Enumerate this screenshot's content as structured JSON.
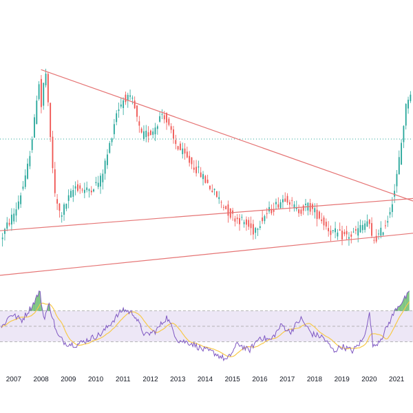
{
  "chart_data": {
    "type": "candlestick",
    "title": "",
    "xlabel": "",
    "ylabel": "",
    "x_ticks": [
      "2007",
      "2008",
      "2009",
      "2010",
      "2011",
      "2012",
      "2013",
      "2014",
      "2015",
      "2016",
      "2017",
      "2018",
      "2019",
      "2020",
      "2021"
    ],
    "xlim": [
      2006.5,
      2021.6
    ],
    "price": {
      "ylim": [
        0,
        100
      ],
      "horizontal_dotted_level": 55,
      "colors": {
        "up": "#26a69a",
        "down": "#ef5350",
        "trendline": "#e57373",
        "level": "#26a69a"
      },
      "keypoints": [
        [
          2006.55,
          14
        ],
        [
          2006.8,
          20
        ],
        [
          2007.1,
          26
        ],
        [
          2007.5,
          40
        ],
        [
          2007.8,
          62
        ],
        [
          2007.95,
          80
        ],
        [
          2008.05,
          68
        ],
        [
          2008.2,
          84
        ],
        [
          2008.35,
          60
        ],
        [
          2008.55,
          32
        ],
        [
          2008.75,
          24
        ],
        [
          2009.0,
          30
        ],
        [
          2009.3,
          36
        ],
        [
          2009.7,
          34
        ],
        [
          2010.2,
          38
        ],
        [
          2010.5,
          50
        ],
        [
          2010.8,
          66
        ],
        [
          2011.1,
          72
        ],
        [
          2011.4,
          70
        ],
        [
          2011.7,
          56
        ],
        [
          2012.1,
          58
        ],
        [
          2012.5,
          66
        ],
        [
          2012.9,
          54
        ],
        [
          2013.3,
          48
        ],
        [
          2013.8,
          42
        ],
        [
          2014.2,
          36
        ],
        [
          2014.6,
          30
        ],
        [
          2015.0,
          24
        ],
        [
          2015.4,
          22
        ],
        [
          2015.8,
          18
        ],
        [
          2016.2,
          24
        ],
        [
          2016.6,
          28
        ],
        [
          2017.0,
          32
        ],
        [
          2017.4,
          26
        ],
        [
          2017.8,
          28
        ],
        [
          2018.2,
          24
        ],
        [
          2018.6,
          18
        ],
        [
          2019.0,
          16
        ],
        [
          2019.4,
          16
        ],
        [
          2019.8,
          20
        ],
        [
          2020.0,
          22
        ],
        [
          2020.15,
          14
        ],
        [
          2020.4,
          16
        ],
        [
          2020.7,
          22
        ],
        [
          2021.0,
          36
        ],
        [
          2021.2,
          52
        ],
        [
          2021.35,
          66
        ],
        [
          2021.5,
          74
        ]
      ],
      "trendlines": [
        {
          "name": "descending-resistance",
          "from": [
            2008.0,
            83
          ],
          "to": [
            2021.6,
            30
          ]
        },
        {
          "name": "upper-support",
          "from": [
            2006.5,
            18
          ],
          "to": [
            2021.6,
            31
          ]
        },
        {
          "name": "lower-support",
          "from": [
            2006.5,
            0
          ],
          "to": [
            2021.6,
            17
          ]
        }
      ]
    },
    "rsi": {
      "ylim": [
        0,
        100
      ],
      "upper_band": 70,
      "lower_band": 30,
      "middle_line": 50,
      "colors": {
        "rsi": "#7e57c2",
        "ma": "#f7c948",
        "band_fill": "#ede7f6",
        "overbought_fill": "#66bb6a",
        "band_line": "#9e9e9e"
      },
      "keypoints": [
        [
          2006.55,
          48
        ],
        [
          2006.9,
          66
        ],
        [
          2007.3,
          58
        ],
        [
          2007.7,
          78
        ],
        [
          2007.95,
          96
        ],
        [
          2008.1,
          60
        ],
        [
          2008.3,
          78
        ],
        [
          2008.6,
          38
        ],
        [
          2008.9,
          28
        ],
        [
          2009.3,
          26
        ],
        [
          2009.8,
          34
        ],
        [
          2010.2,
          40
        ],
        [
          2010.6,
          56
        ],
        [
          2011.0,
          72
        ],
        [
          2011.4,
          66
        ],
        [
          2011.8,
          38
        ],
        [
          2012.2,
          44
        ],
        [
          2012.6,
          62
        ],
        [
          2013.0,
          32
        ],
        [
          2013.5,
          28
        ],
        [
          2013.9,
          20
        ],
        [
          2014.3,
          16
        ],
        [
          2014.8,
          6
        ],
        [
          2015.2,
          28
        ],
        [
          2015.6,
          18
        ],
        [
          2016.0,
          36
        ],
        [
          2016.4,
          32
        ],
        [
          2016.8,
          52
        ],
        [
          2017.1,
          42
        ],
        [
          2017.5,
          60
        ],
        [
          2017.9,
          40
        ],
        [
          2018.3,
          36
        ],
        [
          2018.7,
          18
        ],
        [
          2019.0,
          24
        ],
        [
          2019.4,
          18
        ],
        [
          2019.8,
          34
        ],
        [
          2020.0,
          68
        ],
        [
          2020.15,
          22
        ],
        [
          2020.5,
          38
        ],
        [
          2020.8,
          60
        ],
        [
          2021.0,
          74
        ],
        [
          2021.3,
          86
        ],
        [
          2021.5,
          94
        ]
      ]
    }
  }
}
